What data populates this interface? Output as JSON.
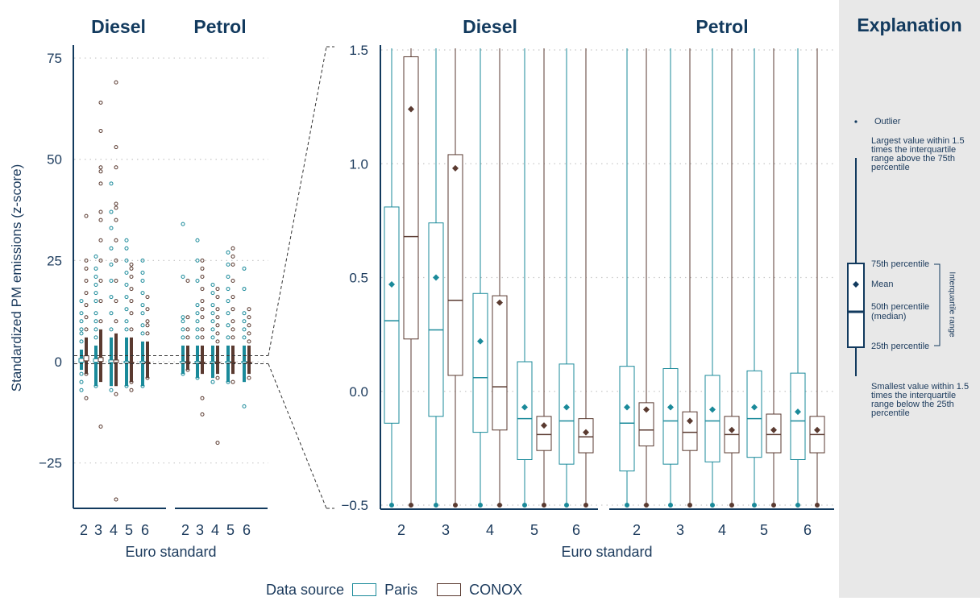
{
  "chart_data": [
    {
      "type": "box",
      "panel": "overview",
      "ylabel": "Standardized PM emissions (z-score)",
      "xlabel": "Euro standard",
      "ylim": [
        -36,
        77
      ],
      "yticks": [
        -25,
        0,
        25,
        50,
        75
      ],
      "ytick_labels": [
        "−25",
        "0",
        "25",
        "50",
        "75"
      ],
      "facets": [
        "Diesel",
        "Petrol"
      ],
      "categories": [
        "2",
        "3",
        "4",
        "5",
        "6"
      ],
      "sources": [
        "Paris",
        "CONOX"
      ],
      "boxes": {
        "Diesel": {
          "Paris": [
            {
              "min": -2,
              "max": 3,
              "q1": -0.14,
              "median": 0.31,
              "q3": 0.81,
              "mean": 0.47,
              "outliers": [
                5,
                7,
                8,
                10,
                12,
                15,
                -3,
                -5,
                -7
              ]
            },
            {
              "min": -6,
              "max": 4,
              "q1": -0.11,
              "median": 0.27,
              "q3": 0.74,
              "mean": 0.5,
              "outliers": [
                6,
                8,
                10,
                12,
                15,
                17,
                19,
                21,
                23,
                26,
                -6
              ]
            },
            {
              "min": -6,
              "max": 6,
              "q1": -0.18,
              "median": 0.06,
              "q3": 0.43,
              "mean": 0.22,
              "outliers": [
                8,
                12,
                16,
                20,
                24,
                28,
                33,
                37,
                44,
                -7
              ]
            },
            {
              "min": -6,
              "max": 6,
              "q1": -0.3,
              "median": -0.12,
              "q3": 0.13,
              "mean": -0.07,
              "outliers": [
                8,
                10,
                13,
                16,
                19,
                22,
                25,
                28,
                30,
                -6
              ]
            },
            {
              "min": -6,
              "max": 5,
              "q1": -0.32,
              "median": -0.13,
              "q3": 0.12,
              "mean": -0.07,
              "outliers": [
                7,
                9,
                12,
                14,
                17,
                20,
                22,
                25,
                -6
              ]
            }
          ],
          "CONOX": [
            {
              "min": -3,
              "max": 6,
              "q1": 0.23,
              "median": 0.68,
              "q3": 1.47,
              "mean": 1.24,
              "outliers": [
                8,
                11,
                14,
                17,
                20,
                23,
                25,
                36,
                -3,
                -9
              ]
            },
            {
              "min": -5,
              "max": 8,
              "q1": 0.07,
              "median": 0.4,
              "q3": 1.04,
              "mean": 0.98,
              "outliers": [
                10,
                15,
                20,
                25,
                30,
                35,
                37,
                44,
                47,
                48,
                57,
                64,
                -16
              ]
            },
            {
              "min": -6,
              "max": 7,
              "q1": -0.17,
              "median": 0.02,
              "q3": 0.42,
              "mean": 0.39,
              "outliers": [
                10,
                15,
                20,
                25,
                30,
                35,
                38,
                39,
                48,
                53,
                69,
                -8,
                -34
              ]
            },
            {
              "min": -5,
              "max": 6,
              "q1": -0.26,
              "median": -0.19,
              "q3": -0.11,
              "mean": -0.15,
              "outliers": [
                8,
                12,
                15,
                18,
                21,
                23,
                24,
                -5,
                -7
              ]
            },
            {
              "min": -4,
              "max": 5,
              "q1": -0.27,
              "median": -0.2,
              "q3": -0.12,
              "mean": -0.18,
              "outliers": [
                7,
                9,
                10,
                13,
                16,
                -4
              ]
            }
          ]
        },
        "Petrol": {
          "Paris": [
            {
              "min": -3,
              "max": 4,
              "q1": -0.35,
              "median": -0.14,
              "q3": 0.11,
              "mean": -0.07,
              "outliers": [
                6,
                8,
                10,
                11,
                21,
                34,
                -3
              ]
            },
            {
              "min": -4,
              "max": 4,
              "q1": -0.32,
              "median": -0.13,
              "q3": 0.1,
              "mean": -0.07,
              "outliers": [
                6,
                8,
                10,
                12,
                14,
                20,
                25,
                30,
                -4
              ]
            },
            {
              "min": -4,
              "max": 4,
              "q1": -0.31,
              "median": -0.13,
              "q3": 0.07,
              "mean": -0.08,
              "outliers": [
                6,
                8,
                10,
                12,
                14,
                17,
                19,
                -5
              ]
            },
            {
              "min": -5,
              "max": 4,
              "q1": -0.29,
              "median": -0.12,
              "q3": 0.09,
              "mean": -0.07,
              "outliers": [
                6,
                9,
                12,
                15,
                18,
                21,
                24,
                27,
                -5
              ]
            },
            {
              "min": -5,
              "max": 4,
              "q1": -0.3,
              "median": -0.13,
              "q3": 0.08,
              "mean": -0.09,
              "outliers": [
                6,
                8,
                10,
                12,
                18,
                23,
                -11
              ]
            }
          ],
          "CONOX": [
            {
              "min": -2,
              "max": 4,
              "q1": -0.24,
              "median": -0.17,
              "q3": -0.05,
              "mean": -0.08,
              "outliers": [
                6,
                8,
                11,
                20,
                -2
              ]
            },
            {
              "min": -3,
              "max": 4,
              "q1": -0.26,
              "median": -0.18,
              "q3": -0.09,
              "mean": -0.13,
              "outliers": [
                6,
                8,
                11,
                13,
                15,
                18,
                21,
                23,
                25,
                -9,
                -13
              ]
            },
            {
              "min": -3,
              "max": 4,
              "q1": -0.27,
              "median": -0.19,
              "q3": -0.11,
              "mean": -0.17,
              "outliers": [
                5,
                7,
                9,
                11,
                13,
                16,
                18,
                -4,
                -20
              ]
            },
            {
              "min": -3,
              "max": 4,
              "q1": -0.27,
              "median": -0.19,
              "q3": -0.1,
              "mean": -0.17,
              "outliers": [
                6,
                8,
                10,
                13,
                16,
                20,
                24,
                26,
                28,
                -5
              ]
            },
            {
              "min": -3,
              "max": 4,
              "q1": -0.27,
              "median": -0.19,
              "q3": -0.11,
              "mean": -0.17,
              "outliers": [
                5,
                7,
                9,
                11,
                13,
                -4
              ]
            }
          ]
        }
      }
    },
    {
      "type": "box",
      "panel": "zoom",
      "xlabel": "Euro standard",
      "ylim": [
        -0.5,
        1.5
      ],
      "yticks": [
        -0.5,
        0.0,
        0.5,
        1.0,
        1.5
      ],
      "ytick_labels": [
        "−0.5",
        "0.0",
        "0.5",
        "1.0",
        "1.5"
      ],
      "facets": [
        "Diesel",
        "Petrol"
      ],
      "categories": [
        "2",
        "3",
        "4",
        "5",
        "6"
      ],
      "note": "Zoomed view of the same boxes in the range -0.5 to 1.5"
    }
  ],
  "colors": {
    "paris": "#1a8a9a",
    "conox": "#5a3a30",
    "axis": "#123a5e",
    "text": "#1b3a5c",
    "grid": "#c8c8c8"
  },
  "legend": {
    "title": "Data source",
    "items": [
      "Paris",
      "CONOX"
    ]
  },
  "explanation": {
    "title": "Explanation",
    "outlier": "Outlier",
    "whisker_top": [
      "Largest value within 1.5",
      "times the interquartile",
      "range above the 75th",
      "percentile"
    ],
    "p75": "75th percentile",
    "mean": "Mean",
    "median": [
      "50th percentile",
      "(median)"
    ],
    "p25": "25th percentile",
    "iqr": "Interquartile range",
    "whisker_bottom": [
      "Smallest value within 1.5",
      "times the interquartile",
      "range below the 25th",
      "percentile"
    ]
  }
}
